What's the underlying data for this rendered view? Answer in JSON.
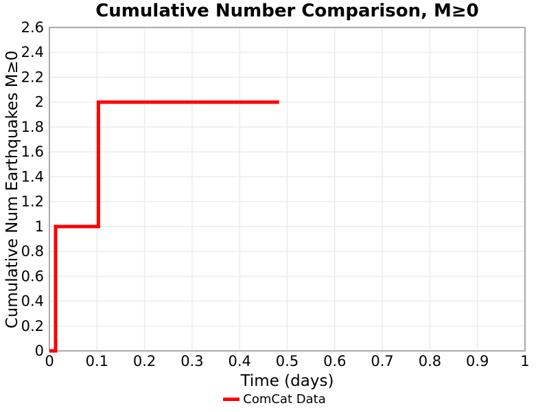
{
  "figure": {
    "background": "#ffffff"
  },
  "chart_data": {
    "type": "line",
    "step_style": "post",
    "title": "Cumulative Number Comparison, M≥0",
    "xlabel": "Time (days)",
    "ylabel": "Cumulative Num Earthquakes M≥0",
    "xlim": [
      0,
      1
    ],
    "ylim": [
      0,
      2.6
    ],
    "grid": true,
    "x_ticks": {
      "values": [
        0,
        0.1,
        0.2,
        0.3,
        0.4,
        0.5,
        0.6,
        0.7,
        0.8,
        0.9,
        1
      ],
      "labels": [
        "0",
        "0.1",
        "0.2",
        "0.3",
        "0.4",
        "0.5",
        "0.6",
        "0.7",
        "0.8",
        "0.9",
        "1"
      ]
    },
    "y_ticks": {
      "values": [
        0,
        0.2,
        0.4,
        0.6,
        0.8,
        1,
        1.2,
        1.4,
        1.6,
        1.8,
        2,
        2.2,
        2.4,
        2.6
      ],
      "labels": [
        "0",
        "0.2",
        "0.4",
        "0.6",
        "0.8",
        "1",
        "1.2",
        "1.4",
        "1.6",
        "1.8",
        "2",
        "2.2",
        "2.4",
        "2.6"
      ]
    },
    "series": [
      {
        "name": "ComCat Data",
        "color": "#ff0000",
        "line_width": 5,
        "x": [
          0,
          0.013,
          0.013,
          0.103,
          0.103,
          0.483
        ],
        "y": [
          0,
          0,
          1,
          1,
          2,
          2
        ],
        "event_times_days": [
          0.013,
          0.103
        ],
        "cumulative_counts": [
          1,
          2
        ]
      }
    ],
    "legend": {
      "position": "bottom-center",
      "entries": [
        {
          "label": "ComCat Data",
          "color": "#ff0000"
        }
      ]
    },
    "colors": {
      "grid": "#ececec",
      "spine": "#a9a9a9",
      "text": "#000000",
      "line": "#ff0000"
    }
  }
}
